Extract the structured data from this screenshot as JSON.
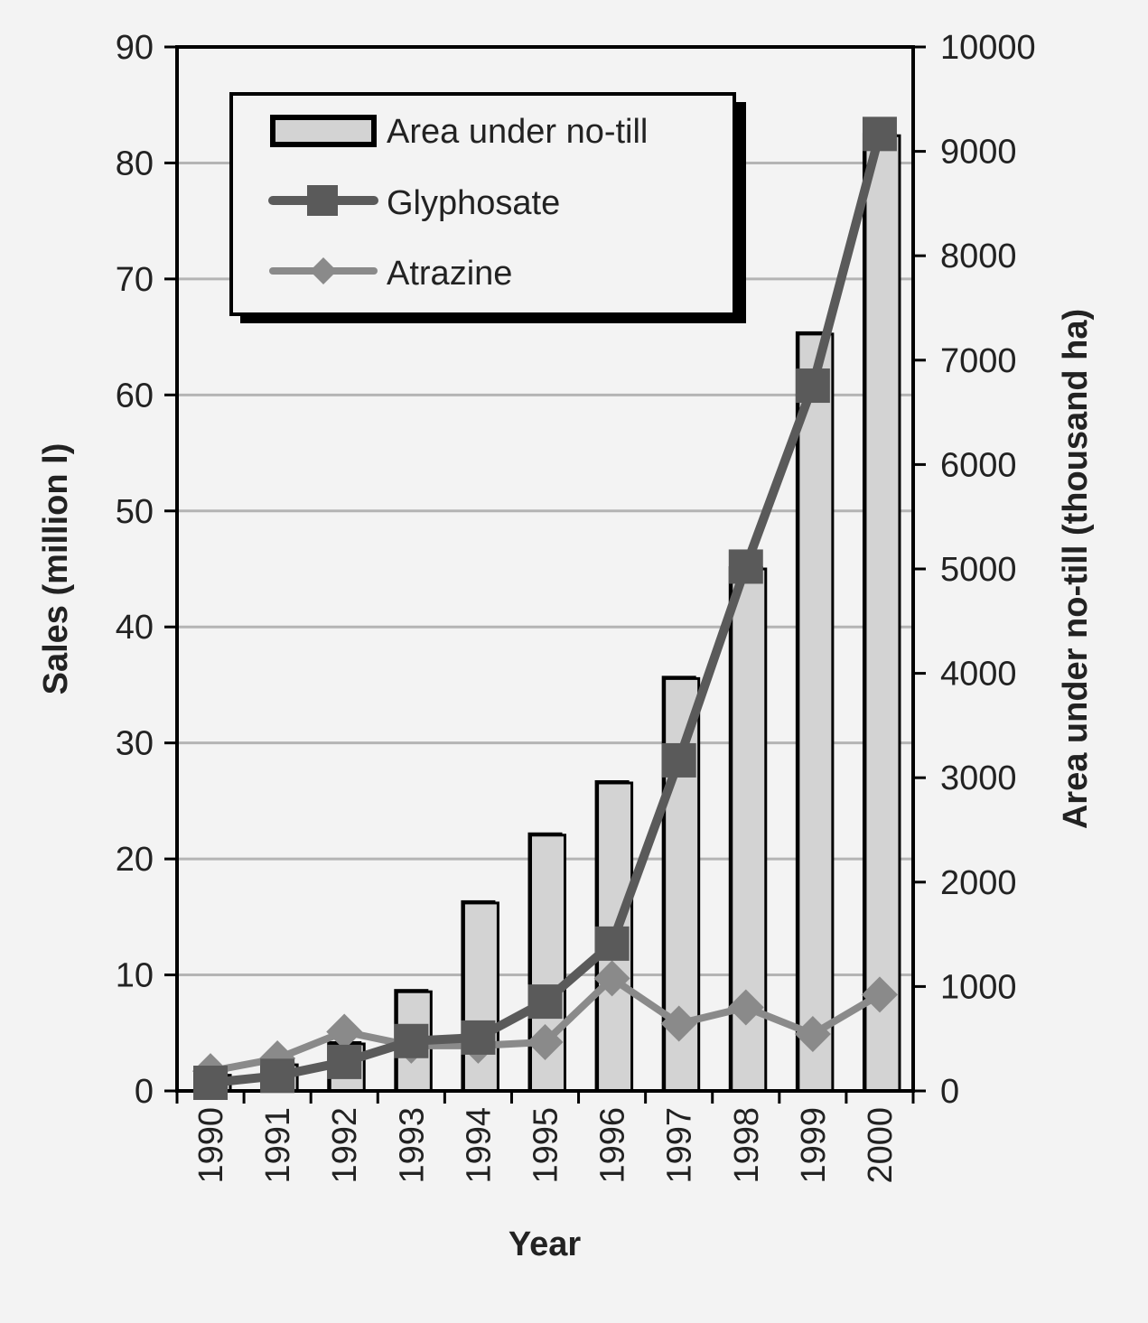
{
  "colors": {
    "background": "#f3f3f3",
    "bar_fill": "#d3d3d3",
    "bar_stroke": "#000000",
    "glyphosate": "#5a5a5a",
    "atrazine": "#8a8a8a",
    "gridline": "#b4b4b4",
    "axis": "#000000",
    "text": "#222222"
  },
  "chart_data": {
    "type": "bar",
    "categories": [
      "1990",
      "1991",
      "1992",
      "1993",
      "1994",
      "1995",
      "1996",
      "1997",
      "1998",
      "1999",
      "2000"
    ],
    "xlabel": "Year",
    "ylabel": "Sales (million l)",
    "y2label": "Area under no-till (thousand ha)",
    "ylim": [
      0,
      90
    ],
    "y2lim": [
      0,
      10000
    ],
    "yticks": [
      "0",
      "10",
      "20",
      "30",
      "40",
      "50",
      "60",
      "70",
      "80",
      "90"
    ],
    "y2ticks": [
      "0",
      "1000",
      "2000",
      "3000",
      "4000",
      "5000",
      "6000",
      "7000",
      "8000",
      "9000",
      "10000"
    ],
    "grid": true,
    "legend_position": "top-left",
    "series": [
      {
        "name": "Area under no-till",
        "type": "bar",
        "axis": "right",
        "values": [
          150,
          250,
          450,
          950,
          1800,
          2450,
          2950,
          3950,
          5000,
          7250,
          9150
        ]
      },
      {
        "name": "Glyphosate",
        "type": "line",
        "marker": "square",
        "axis": "left",
        "values": [
          0.7,
          1.3,
          2.5,
          4.3,
          4.6,
          7.7,
          12.7,
          28.5,
          45.2,
          60.8,
          82.5
        ]
      },
      {
        "name": "Atrazine",
        "type": "line",
        "marker": "diamond",
        "axis": "left",
        "values": [
          1.7,
          2.8,
          5.1,
          3.9,
          3.9,
          4.2,
          9.7,
          5.8,
          7.2,
          4.9,
          8.3
        ]
      }
    ]
  }
}
